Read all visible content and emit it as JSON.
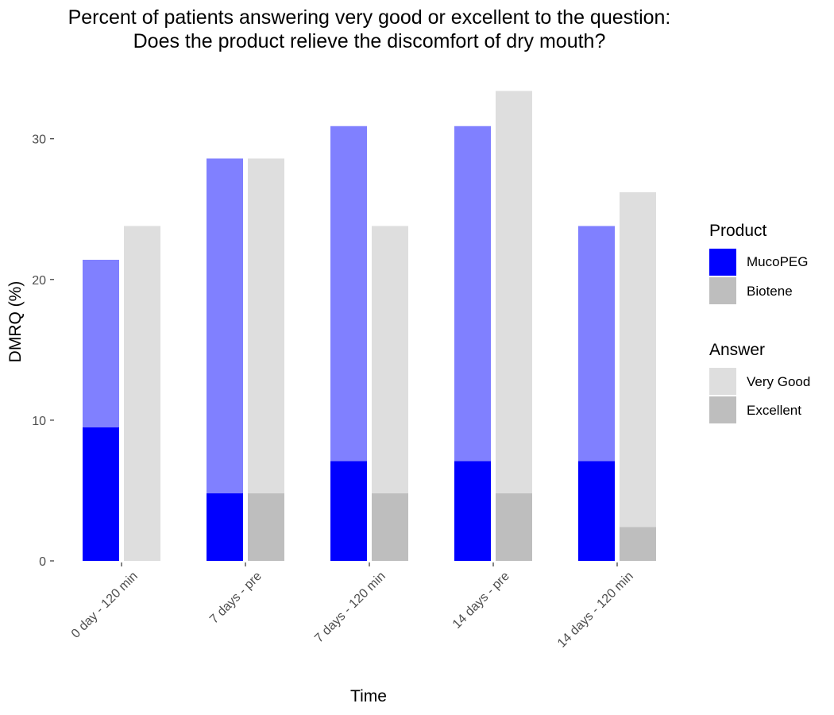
{
  "chart_data": {
    "type": "bar",
    "title": "Percent of patients answering very good or excellent to the question:",
    "subtitle": "Does the product relieve the discomfort of dry mouth?",
    "xlabel": "Time",
    "ylabel": "DMRQ (%)",
    "categories": [
      "0 day - 120 min",
      "7 days - pre",
      "7 days - 120 min",
      "14 days - pre",
      "14 days - 120 min"
    ],
    "ylim": [
      0,
      34.5
    ],
    "yticks": [
      0,
      10,
      20,
      30
    ],
    "grid": false,
    "stacked_within_product": true,
    "series": [
      {
        "product": "MucoPEG",
        "answer": "Excellent",
        "color": "#0000ff",
        "values": [
          9.5,
          4.8,
          7.1,
          7.1,
          7.1
        ]
      },
      {
        "product": "MucoPEG",
        "answer": "Very Good",
        "color": "#8080ff",
        "values": [
          11.9,
          23.8,
          23.8,
          23.8,
          16.7
        ]
      },
      {
        "product": "Biotene",
        "answer": "Excellent",
        "color": "#bebebe",
        "values": [
          0,
          4.8,
          4.8,
          4.8,
          2.4
        ]
      },
      {
        "product": "Biotene",
        "answer": "Very Good",
        "color": "#dedede",
        "values": [
          23.8,
          23.8,
          19.0,
          28.6,
          23.8
        ]
      }
    ],
    "legend": {
      "position": "right",
      "groups": [
        {
          "title": "Product",
          "items": [
            {
              "label": "MucoPEG",
              "color": "#0000ff"
            },
            {
              "label": "Biotene",
              "color": "#bebebe"
            }
          ]
        },
        {
          "title": "Answer",
          "items": [
            {
              "label": "Very Good",
              "color": "#dedede"
            },
            {
              "label": "Excellent",
              "color": "#bebebe"
            }
          ]
        }
      ]
    }
  }
}
